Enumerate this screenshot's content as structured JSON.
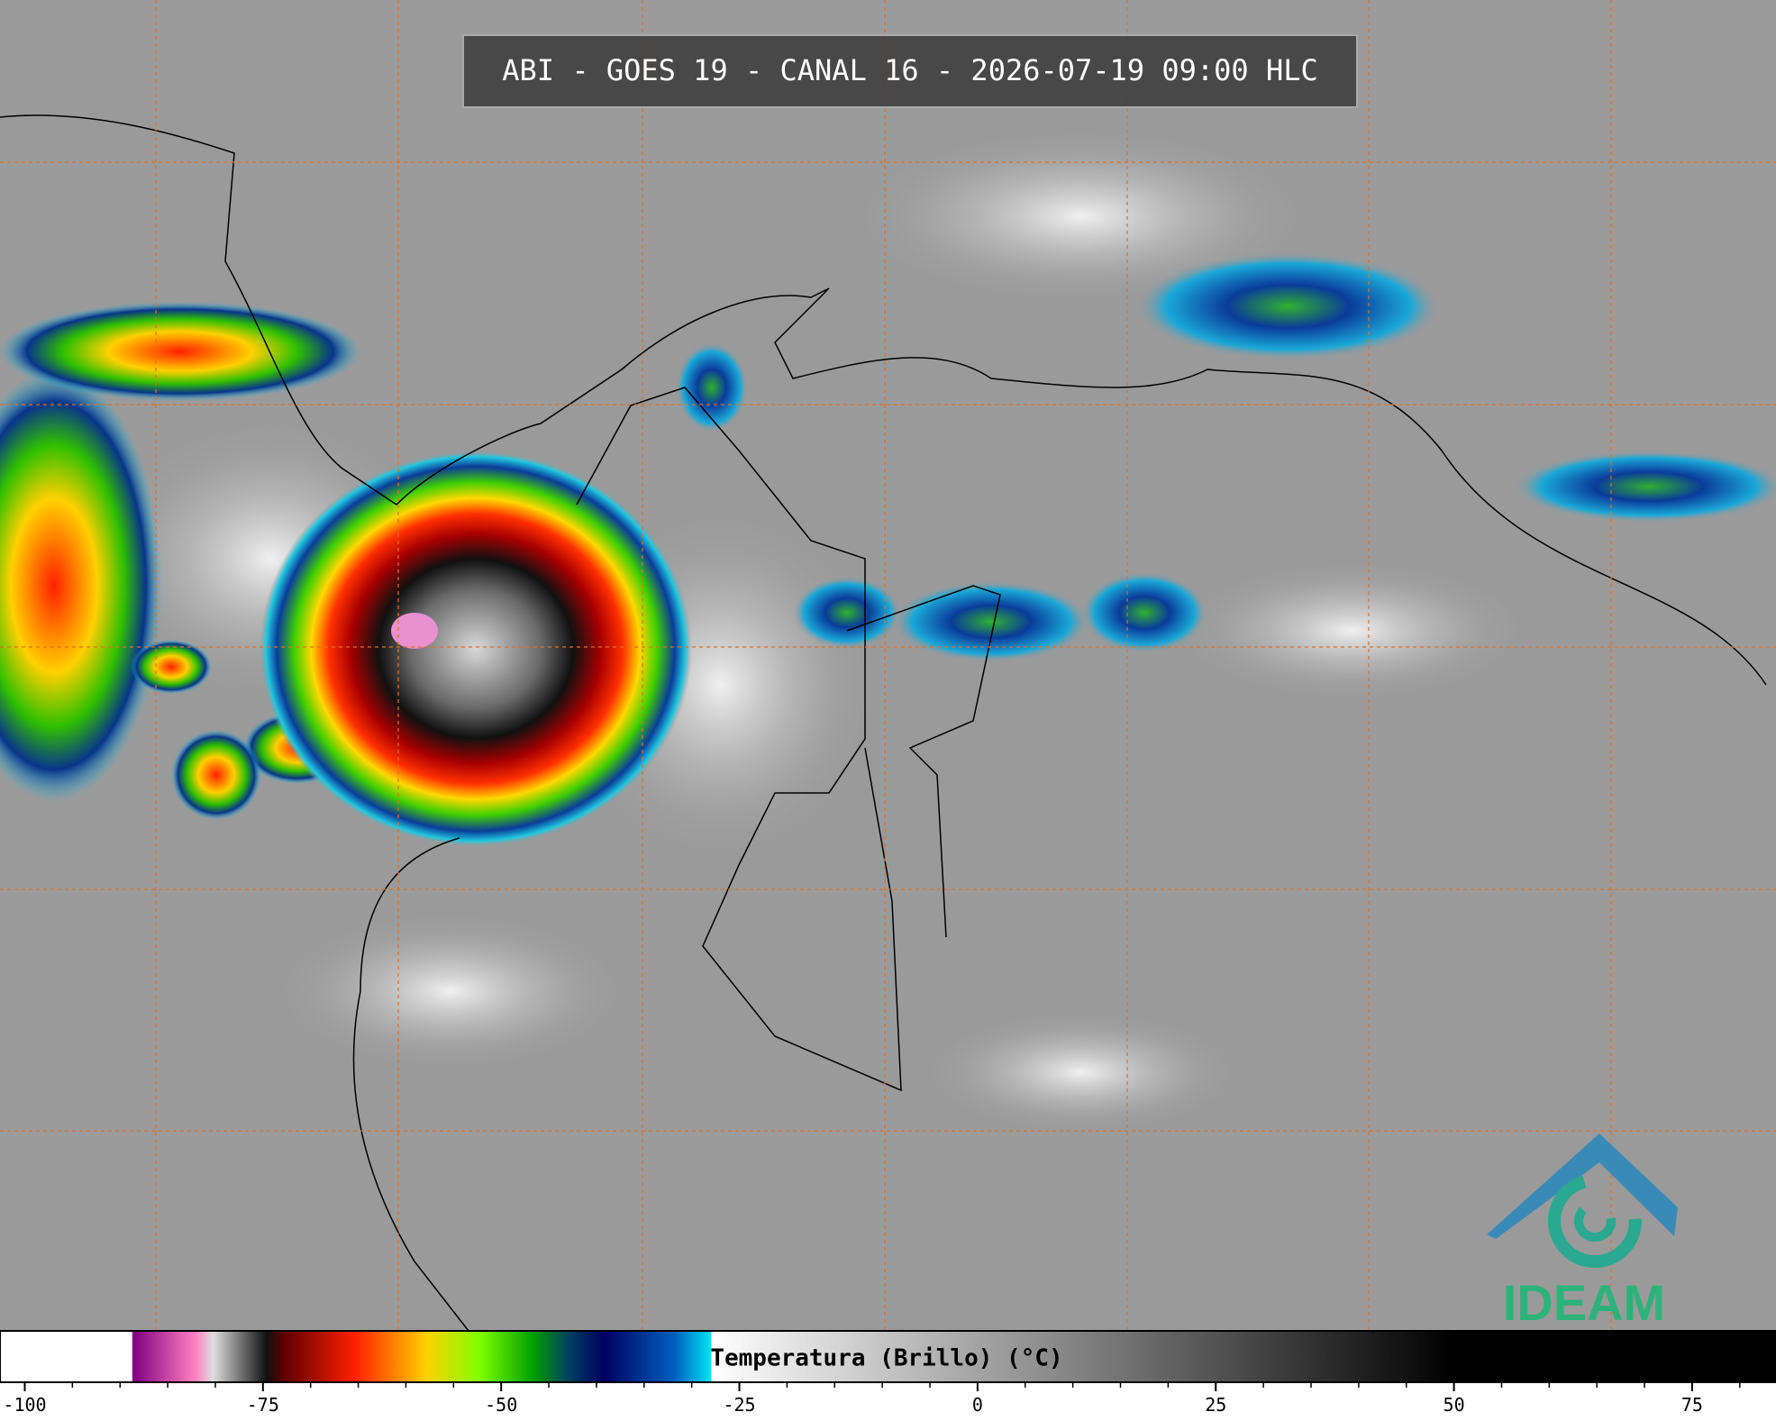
{
  "header": {
    "title": "ABI - GOES 19 - CANAL 16 - 2026-07-19 09:00 HLC"
  },
  "colorbar": {
    "label": "Temperatura (Brillo) (°C)",
    "xlim": [
      -102.6,
      83.8
    ],
    "xticks": [
      -100,
      -75,
      -50,
      -25,
      0,
      25,
      50,
      75
    ],
    "minor_xticks": [
      -95,
      -90,
      -85,
      -80,
      -70,
      -65,
      -60,
      -55,
      -45,
      -40,
      -35,
      -30,
      -20,
      -15,
      -10,
      -5,
      5,
      10,
      15,
      20,
      30,
      35,
      40,
      45,
      55,
      60,
      65,
      70,
      80
    ]
  },
  "logo": {
    "text": "IDEAM"
  }
}
